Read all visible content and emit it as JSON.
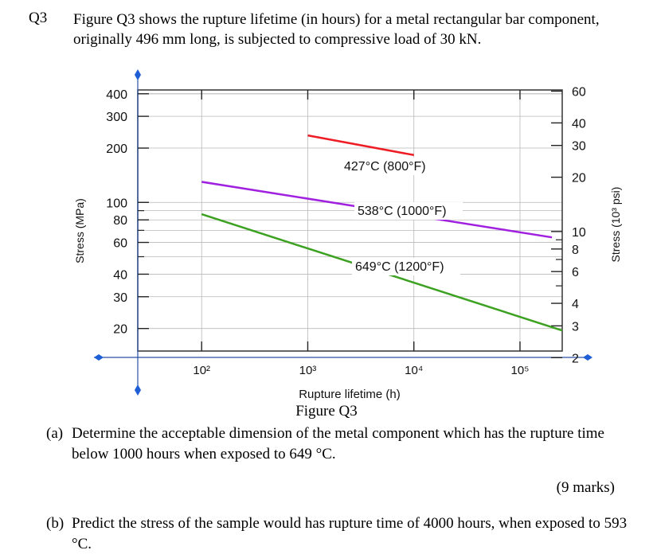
{
  "question": {
    "number": "Q3",
    "intro": "Figure Q3 shows the rupture lifetime (in hours) for a metal rectangular bar component, originally 496 mm long, is subjected to compressive load of 30 kN."
  },
  "figure_caption": "Figure Q3",
  "part_a": {
    "label": "(a)",
    "text": "Determine the acceptable dimension of the metal component which has the rupture time below 1000 hours when exposed to 649 °C."
  },
  "marks": "(9 marks)",
  "part_b": {
    "label": "(b)",
    "text": "Predict the stress of the sample would has rupture time of 4000 hours, when exposed to 593 °C."
  },
  "chart_data": {
    "type": "line",
    "xscale": "log",
    "yscale": "log",
    "xlabel": "Rupture lifetime (h)",
    "ylabel": "Stress (MPa)",
    "y2label": "Stress (10³ psi)",
    "xlim": [
      25,
      250000
    ],
    "ylim": [
      15,
      420
    ],
    "grid": true,
    "x_ticks": [
      {
        "value": 100,
        "label": "10²"
      },
      {
        "value": 1000,
        "label": "10³"
      },
      {
        "value": 10000,
        "label": "10⁴"
      },
      {
        "value": 100000,
        "label": "10⁵"
      }
    ],
    "y_ticks": [
      {
        "value": 400,
        "label": "400"
      },
      {
        "value": 300,
        "label": "300"
      },
      {
        "value": 200,
        "label": "200"
      },
      {
        "value": 100,
        "label": "100"
      },
      {
        "value": 80,
        "label": "80"
      },
      {
        "value": 60,
        "label": "60"
      },
      {
        "value": 40,
        "label": "40"
      },
      {
        "value": 30,
        "label": "30"
      },
      {
        "value": 20,
        "label": "20"
      }
    ],
    "y2_ticks": [
      {
        "value": 60,
        "label": "60"
      },
      {
        "value": 40,
        "label": "40"
      },
      {
        "value": 30,
        "label": "30"
      },
      {
        "value": 20,
        "label": "20"
      },
      {
        "value": 10,
        "label": "10"
      },
      {
        "value": 8,
        "label": "8"
      },
      {
        "value": 6,
        "label": "6"
      },
      {
        "value": 4,
        "label": "4"
      },
      {
        "value": 3,
        "label": "3"
      },
      {
        "value": 2,
        "label": "2"
      }
    ],
    "series": [
      {
        "name": "427°C (800°F)",
        "color": "#ee1c24",
        "points": [
          [
            1000,
            235
          ],
          [
            10000,
            183
          ]
        ]
      },
      {
        "name": "538°C (1000°F)",
        "color": "#a020e0",
        "points": [
          [
            100,
            130
          ],
          [
            200000,
            64
          ]
        ]
      },
      {
        "name": "649°C (1200°F)",
        "color": "#3ca121",
        "points": [
          [
            100,
            86
          ],
          [
            250000,
            19.5
          ]
        ]
      }
    ]
  }
}
